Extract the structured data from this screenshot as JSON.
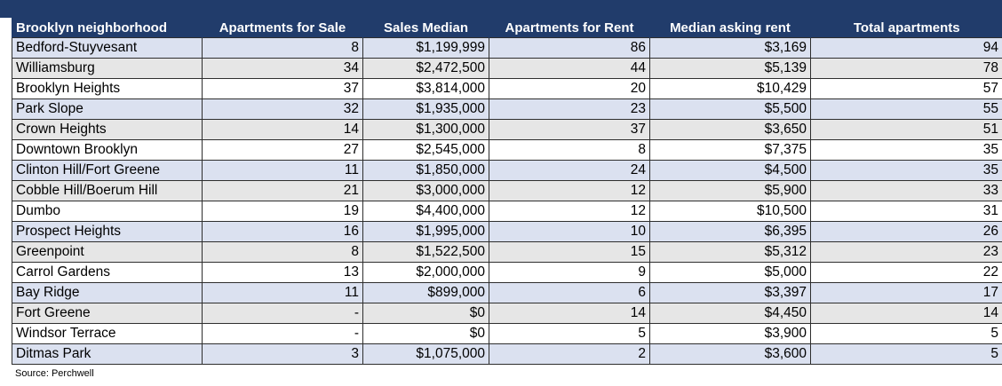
{
  "table": {
    "headers": [
      "Brooklyn neighborhood",
      "Apartments for Sale",
      "Sales Median",
      "Apartments for Rent",
      "Median asking rent",
      "Total apartments"
    ],
    "rows": [
      [
        "Bedford-Stuyvesant",
        "8",
        "$1,199,999",
        "86",
        "$3,169",
        "94"
      ],
      [
        "Williamsburg",
        "34",
        "$2,472,500",
        "44",
        "$5,139",
        "78"
      ],
      [
        "Brooklyn Heights",
        "37",
        "$3,814,000",
        "20",
        "$10,429",
        "57"
      ],
      [
        "Park Slope",
        "32",
        "$1,935,000",
        "23",
        "$5,500",
        "55"
      ],
      [
        "Crown Heights",
        "14",
        "$1,300,000",
        "37",
        "$3,650",
        "51"
      ],
      [
        "Downtown Brooklyn",
        "27",
        "$2,545,000",
        "8",
        "$7,375",
        "35"
      ],
      [
        "Clinton Hill/Fort Greene",
        "11",
        "$1,850,000",
        "24",
        "$4,500",
        "35"
      ],
      [
        "Cobble Hill/Boerum Hill",
        "21",
        "$3,000,000",
        "12",
        "$5,900",
        "33"
      ],
      [
        "Dumbo",
        "19",
        "$4,400,000",
        "12",
        "$10,500",
        "31"
      ],
      [
        "Prospect Heights",
        "16",
        "$1,995,000",
        "10",
        "$6,395",
        "26"
      ],
      [
        "Greenpoint",
        "8",
        "$1,522,500",
        "15",
        "$5,312",
        "23"
      ],
      [
        "Carrol Gardens",
        "13",
        "$2,000,000",
        "9",
        "$5,000",
        "22"
      ],
      [
        "Bay Ridge",
        "11",
        "$899,000",
        "6",
        "$3,397",
        "17"
      ],
      [
        "Fort Greene",
        "-",
        "$0",
        "14",
        "$4,450",
        "14"
      ],
      [
        "Windsor Terrace",
        "-",
        "$0",
        "5",
        "$3,900",
        "5"
      ],
      [
        "Ditmas Park",
        "3",
        "$1,075,000",
        "2",
        "$3,600",
        "5"
      ]
    ]
  },
  "source": "Source: Perchwell",
  "colors": {
    "header_bg": "#213c6b",
    "row_blue": "#dbe1f0",
    "row_gray": "#e6e6e6"
  }
}
